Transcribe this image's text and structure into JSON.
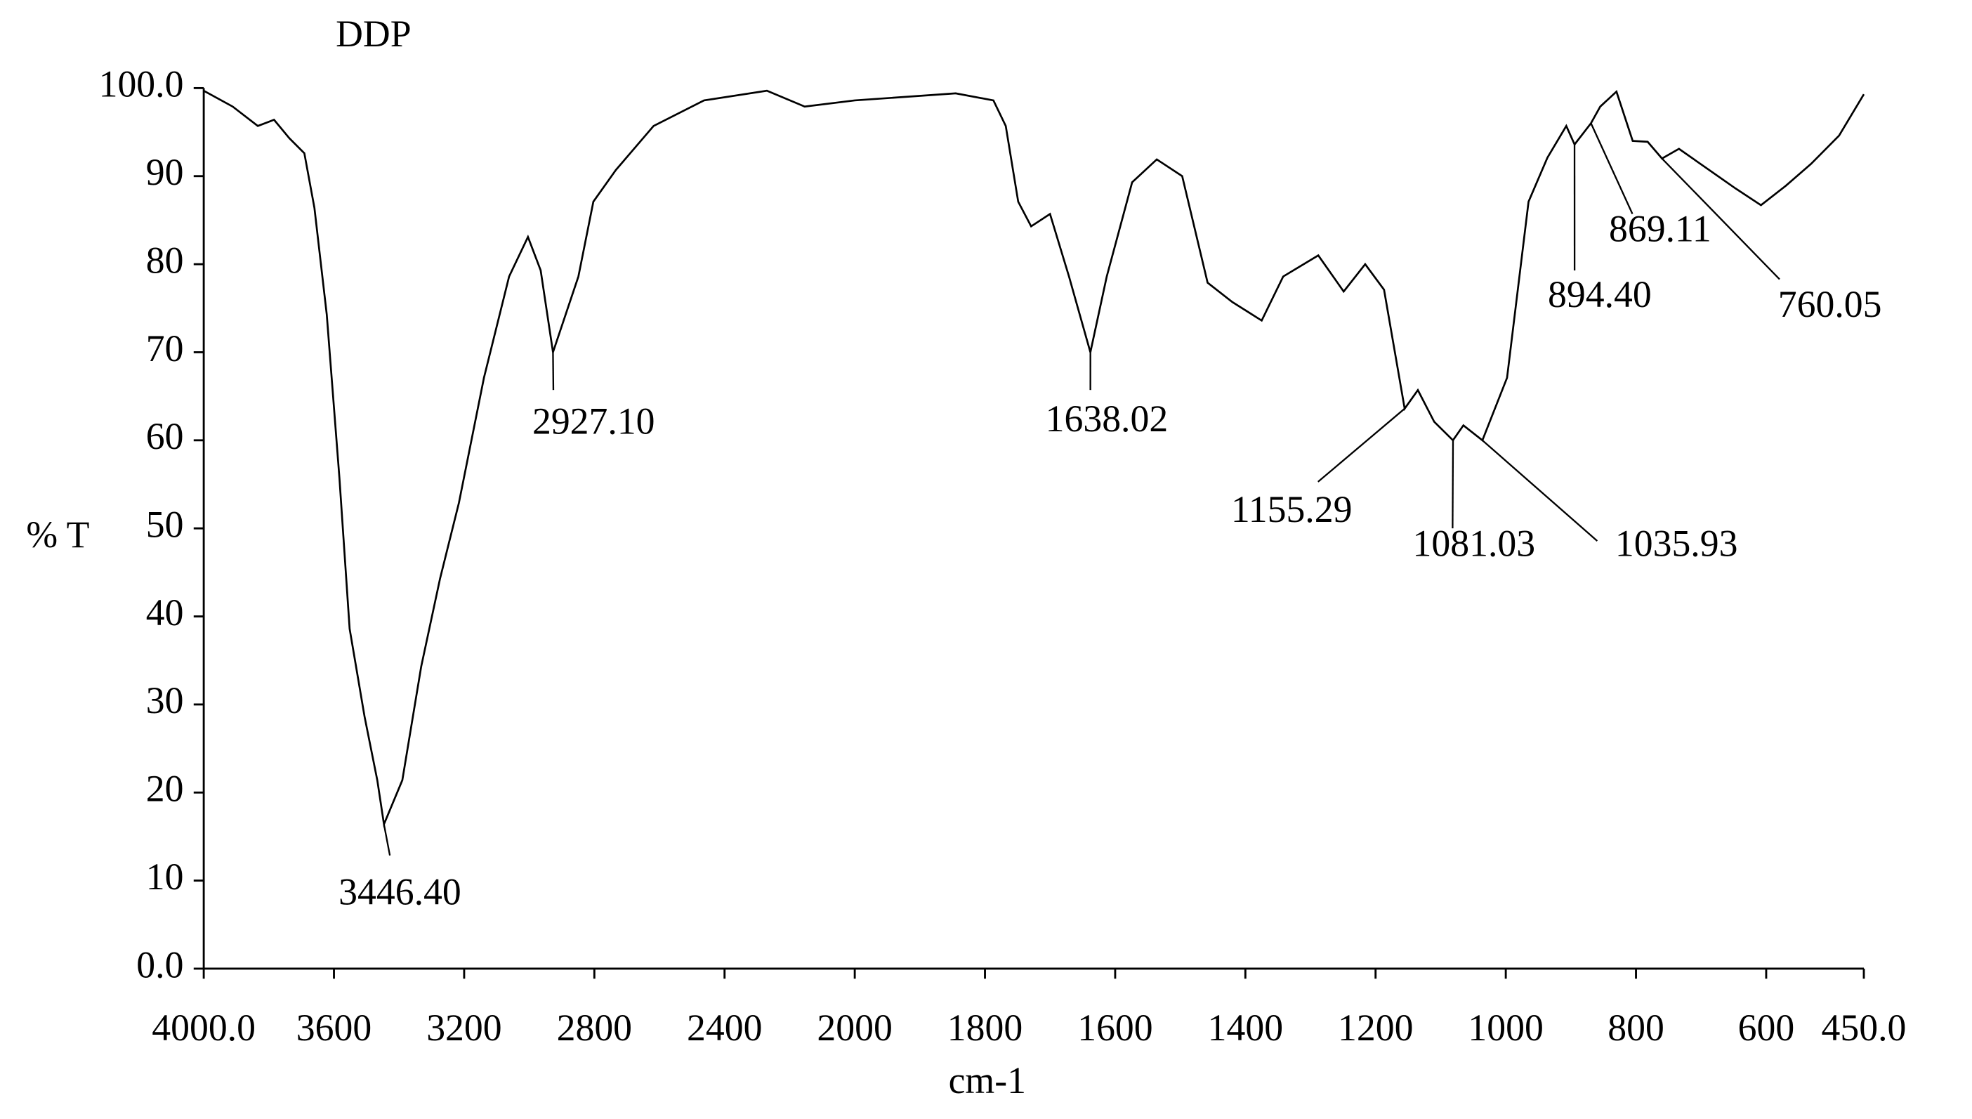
{
  "chart_data": {
    "type": "line",
    "title": "DDP",
    "x_label": "cm-1",
    "y_label": "% T",
    "xlim": [
      4000,
      450
    ],
    "ylim": [
      0,
      100
    ],
    "x_scale_change": {
      "at": 2000,
      "factor": 2
    },
    "xticks": [
      {
        "value": 4000,
        "label": "4000.0"
      },
      3600,
      3200,
      2800,
      2400,
      2000,
      1800,
      1600,
      1400,
      1200,
      1000,
      800,
      600,
      {
        "value": 450,
        "label": "450.0"
      }
    ],
    "yticks": [
      {
        "value": 0,
        "label": "0.0"
      },
      10,
      20,
      30,
      40,
      50,
      60,
      70,
      80,
      90,
      {
        "value": 100,
        "label": "100.0"
      }
    ],
    "series": [
      {
        "name": "DDP",
        "color": "#000000",
        "x": [
          4000,
          3911,
          3834,
          3784,
          3737,
          3691,
          3660,
          3622,
          3583,
          3552,
          3506,
          3467,
          3446.4,
          3390,
          3332,
          3274,
          3216,
          3139,
          3062,
          3004,
          2965,
          2927.1,
          2888,
          2849,
          2803,
          2734,
          2618,
          2463,
          2270,
          2154,
          2000,
          1845,
          1787,
          1768,
          1749,
          1729,
          1700,
          1671,
          1638.02,
          1613,
          1574,
          1536,
          1497,
          1458,
          1420,
          1375,
          1342,
          1288,
          1249,
          1216,
          1187,
          1155.29,
          1135,
          1110,
          1081.03,
          1065,
          1035.93,
          998,
          965,
          936,
          907,
          894.4,
          869.11,
          855,
          830,
          805,
          782,
          760.05,
          734,
          647,
          608,
          570,
          531,
          488,
          450
        ],
        "values": [
          99.7,
          97.9,
          95.7,
          96.4,
          94.3,
          92.6,
          86.4,
          74.3,
          55.7,
          38.6,
          28.6,
          21.4,
          16.4,
          21.4,
          34.3,
          44.3,
          52.9,
          67.1,
          78.6,
          83.1,
          79.3,
          70.0,
          74.3,
          78.6,
          87.1,
          90.7,
          95.7,
          98.6,
          99.7,
          97.9,
          98.6,
          99.4,
          98.6,
          95.7,
          87.1,
          84.3,
          85.7,
          78.6,
          70.0,
          78.6,
          89.3,
          91.9,
          90.0,
          77.9,
          75.7,
          73.6,
          78.6,
          81.0,
          76.9,
          80.0,
          77.1,
          63.6,
          65.7,
          62.1,
          60.0,
          61.7,
          60.0,
          67.1,
          87.1,
          92.1,
          95.7,
          93.6,
          96.0,
          97.9,
          99.6,
          94.0,
          93.9,
          92.0,
          93.1,
          88.6,
          86.7,
          88.9,
          91.4,
          94.6,
          99.3
        ]
      }
    ],
    "annotations": [
      {
        "text": "3446.40",
        "x": 3446.4,
        "y": 16.4
      },
      {
        "text": "2927.10",
        "x": 2927.1,
        "y": 70.0
      },
      {
        "text": "1638.02",
        "x": 1638.02,
        "y": 70.0
      },
      {
        "text": "1155.29",
        "x": 1155.29,
        "y": 63.6
      },
      {
        "text": "1081.03",
        "x": 1081.03,
        "y": 60.0
      },
      {
        "text": "1035.93",
        "x": 1035.93,
        "y": 60.0
      },
      {
        "text": "894.40",
        "x": 894.4,
        "y": 93.6
      },
      {
        "text": "869.11",
        "x": 869.11,
        "y": 96.0
      },
      {
        "text": "760.05",
        "x": 760.05,
        "y": 92.0
      }
    ]
  }
}
